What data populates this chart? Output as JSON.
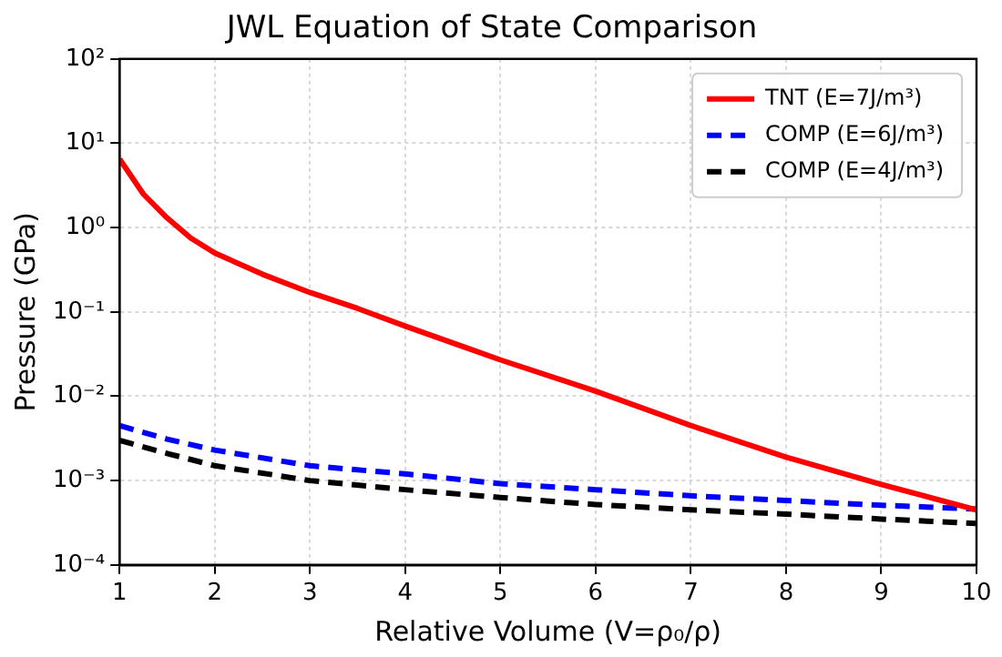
{
  "chart_data": {
    "type": "line",
    "title": "JWL Equation of State Comparison",
    "xlabel": "Relative Volume (V=ρ₀/ρ)",
    "ylabel": "Pressure (GPa)",
    "log": "y",
    "grid": true,
    "legend": "top right",
    "xlim": [
      1,
      10
    ],
    "xticks": [
      1,
      2,
      3,
      4,
      5,
      6,
      7,
      8,
      9,
      10
    ],
    "ylim": [
      0.0001,
      100
    ],
    "yticks": [
      {
        "value": 0.0001,
        "label": "10⁻⁴"
      },
      {
        "value": 0.001,
        "label": "10⁻³"
      },
      {
        "value": 0.01,
        "label": "10⁻²"
      },
      {
        "value": 0.1,
        "label": "10⁻¹"
      },
      {
        "value": 1,
        "label": "10⁰"
      },
      {
        "value": 10,
        "label": "10¹"
      },
      {
        "value": 100,
        "label": "10²"
      }
    ],
    "series": [
      {
        "name": "TNT (E=7J/m³)",
        "color": "#ff0000",
        "line_style": "solid",
        "x": [
          1,
          1.25,
          1.5,
          1.75,
          2,
          2.5,
          3,
          3.5,
          4,
          5,
          6,
          7,
          8,
          9,
          10
        ],
        "values": [
          6.5,
          2.5,
          1.3,
          0.75,
          0.5,
          0.28,
          0.17,
          0.11,
          0.068,
          0.027,
          0.0115,
          0.0045,
          0.0019,
          0.0009,
          0.00045
        ]
      },
      {
        "name": "COMP (E=6J/m³)",
        "color": "#0000ff",
        "line_style": "dashed",
        "x": [
          1,
          1.5,
          2,
          3,
          4,
          5,
          6,
          7,
          8,
          9,
          10
        ],
        "values": [
          0.0045,
          0.0031,
          0.0023,
          0.0015,
          0.0012,
          0.00092,
          0.00078,
          0.00066,
          0.00058,
          0.00051,
          0.00046
        ]
      },
      {
        "name": "COMP (E=4J/m³)",
        "color": "#000000",
        "line_style": "dashed",
        "x": [
          1,
          1.5,
          2,
          3,
          4,
          5,
          6,
          7,
          8,
          9,
          10
        ],
        "values": [
          0.003,
          0.0021,
          0.0015,
          0.001,
          0.00078,
          0.00063,
          0.00052,
          0.00045,
          0.0004,
          0.00035,
          0.00031
        ]
      }
    ]
  }
}
